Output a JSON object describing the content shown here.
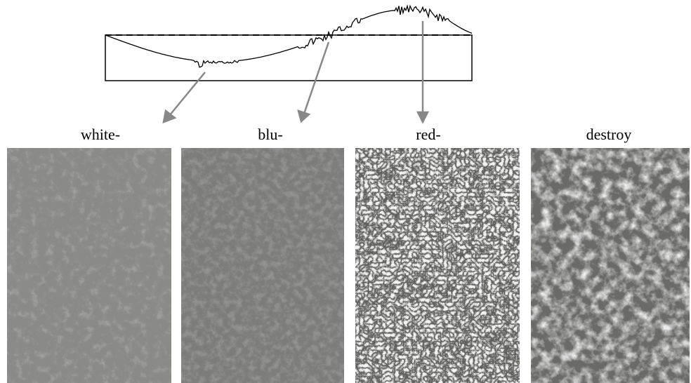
{
  "labels": [
    "white-",
    "blu-",
    "red-",
    "destroy"
  ]
}
